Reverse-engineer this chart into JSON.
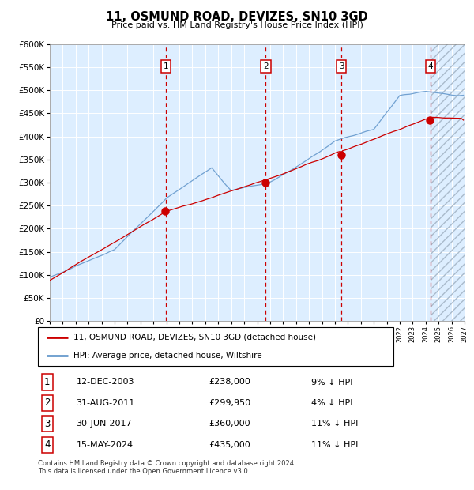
{
  "title": "11, OSMUND ROAD, DEVIZES, SN10 3GD",
  "subtitle": "Price paid vs. HM Land Registry's House Price Index (HPI)",
  "footnote": "Contains HM Land Registry data © Crown copyright and database right 2024.\nThis data is licensed under the Open Government Licence v3.0.",
  "legend_line1": "11, OSMUND ROAD, DEVIZES, SN10 3GD (detached house)",
  "legend_line2": "HPI: Average price, detached house, Wiltshire",
  "transactions": [
    {
      "num": 1,
      "date": "12-DEC-2003",
      "price": 238000,
      "pct": "9%",
      "year": 2003.95
    },
    {
      "num": 2,
      "date": "31-AUG-2011",
      "price": 299950,
      "pct": "4%",
      "year": 2011.67
    },
    {
      "num": 3,
      "date": "30-JUN-2017",
      "price": 360000,
      "pct": "11%",
      "year": 2017.5
    },
    {
      "num": 4,
      "date": "15-MAY-2024",
      "price": 435000,
      "pct": "11%",
      "year": 2024.37
    }
  ],
  "hpi_color": "#6699cc",
  "price_color": "#cc0000",
  "vline_color": "#cc0000",
  "bg_color": "#ddeeff",
  "ylim": [
    0,
    600000
  ],
  "yticks": [
    0,
    50000,
    100000,
    150000,
    200000,
    250000,
    300000,
    350000,
    400000,
    450000,
    500000,
    550000,
    600000
  ],
  "xmin": 1995,
  "xmax": 2027
}
